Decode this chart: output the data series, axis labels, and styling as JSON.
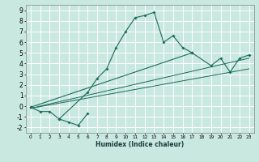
{
  "xlabel": "Humidex (Indice chaleur)",
  "xlim": [
    -0.5,
    23.5
  ],
  "ylim": [
    -2.5,
    9.5
  ],
  "ytick_values": [
    -2,
    -1,
    0,
    1,
    2,
    3,
    4,
    5,
    6,
    7,
    8,
    9
  ],
  "background_color": "#c8e8e0",
  "grid_color": "#ffffff",
  "line_color": "#1a6b5a",
  "lines": [
    {
      "x": [
        0,
        1,
        2,
        3,
        6,
        7,
        8,
        9,
        10,
        11,
        12,
        13,
        14,
        15,
        16,
        17
      ],
      "y": [
        -0.1,
        -0.5,
        -0.5,
        -1.2,
        1.3,
        2.6,
        3.5,
        5.5,
        7.0,
        8.3,
        8.5,
        8.8,
        6.0,
        6.6,
        5.5,
        5.0
      ],
      "marker": true
    },
    {
      "x": [
        3,
        4,
        5,
        6
      ],
      "y": [
        -1.2,
        -1.5,
        -1.8,
        -0.7
      ],
      "marker": true
    },
    {
      "x": [
        0,
        17,
        19,
        20,
        21,
        22,
        23
      ],
      "y": [
        -0.1,
        5.0,
        3.8,
        4.5,
        3.2,
        4.5,
        4.8
      ],
      "marker": true
    },
    {
      "x": [
        0,
        23
      ],
      "y": [
        -0.2,
        4.5
      ],
      "marker": false
    },
    {
      "x": [
        0,
        23
      ],
      "y": [
        -0.2,
        3.5
      ],
      "marker": false
    }
  ]
}
